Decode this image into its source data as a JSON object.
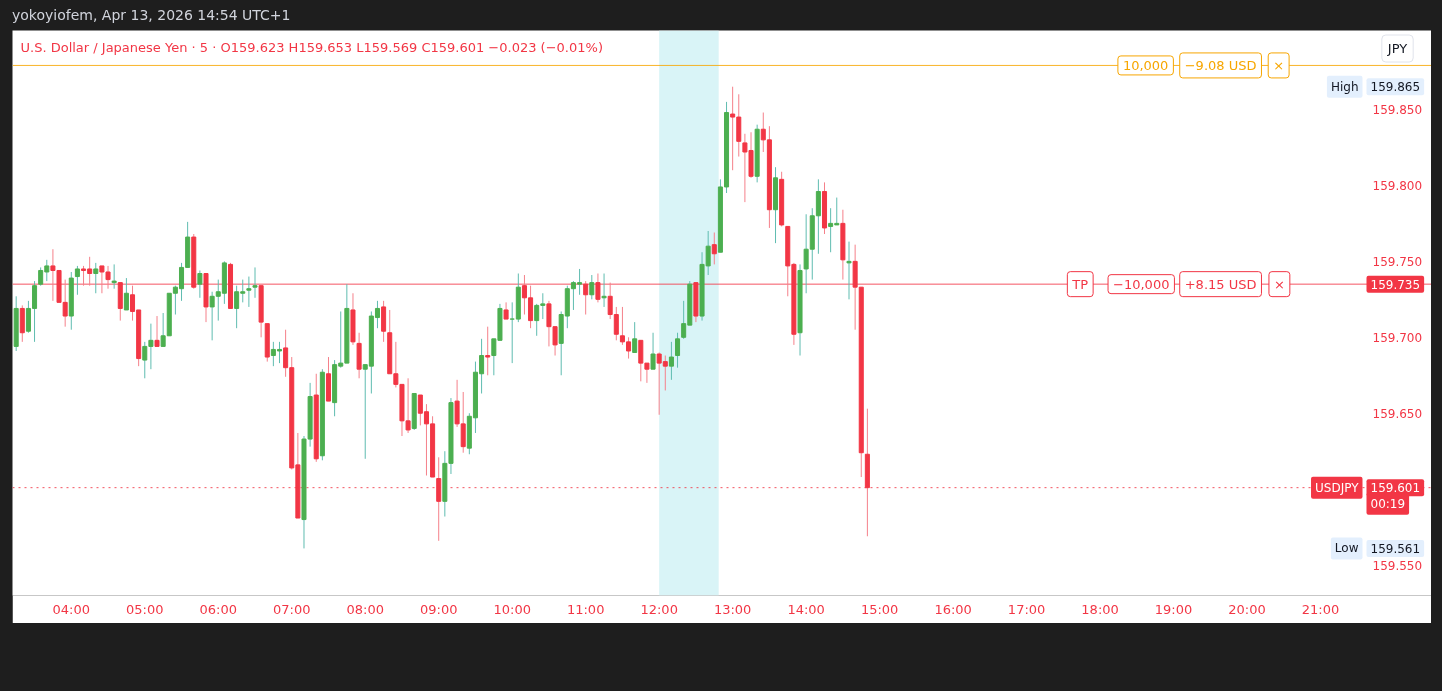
{
  "chart_data": {
    "type": "candlestick",
    "title": "U.S. Dollar / Japanese Yen · 5 · O159.623 H159.653 L159.569 C159.601 −0.023 (−0.01%)",
    "x": [
      3.25,
      3.3333,
      3.4167,
      3.5,
      3.5833,
      3.6667,
      3.75,
      3.8333,
      3.9167,
      4,
      4.0833,
      4.1667,
      4.25,
      4.3333,
      4.4167,
      4.5,
      4.5833,
      4.6667,
      4.75,
      4.8333,
      4.9167,
      5,
      5.0833,
      5.1667,
      5.25,
      5.3333,
      5.4167,
      5.5,
      5.5833,
      5.6667,
      5.75,
      5.8333,
      5.9167,
      6,
      6.0833,
      6.1667,
      6.25,
      6.3333,
      6.4167,
      6.5,
      6.5833,
      6.6667,
      6.75,
      6.8333,
      6.9167,
      7,
      7.0833,
      7.1667,
      7.25,
      7.3333,
      7.4167,
      7.5,
      7.5833,
      7.6667,
      7.75,
      7.8333,
      7.9167,
      8,
      8.0833,
      8.1667,
      8.25,
      8.3333,
      8.4167,
      8.5,
      8.5833,
      8.6667,
      8.75,
      8.8333,
      8.9167,
      9,
      9.0833,
      9.1667,
      9.25,
      9.3333,
      9.4167,
      9.5,
      9.5833,
      9.6667,
      9.75,
      9.8333,
      9.9167,
      10,
      10.0833,
      10.1667,
      10.25,
      10.3333,
      10.4167,
      10.5,
      10.5833,
      10.6667,
      10.75,
      10.8333,
      10.9167,
      11,
      11.0833,
      11.1667,
      11.25,
      11.3333,
      11.4167,
      11.5,
      11.5833,
      11.6667,
      11.75,
      11.8333,
      11.9167,
      12,
      12.0833,
      12.1667,
      12.25,
      12.3333,
      12.4167,
      12.5,
      12.5833,
      12.6667,
      12.75,
      12.8333,
      12.9167,
      13,
      13.0833,
      13.1667,
      13.25,
      13.3333,
      13.4167,
      13.5,
      13.5833,
      13.6667,
      13.75,
      13.8333,
      13.9167,
      14,
      14.0833,
      14.1667,
      14.25,
      14.3333,
      14.4167,
      14.5,
      14.5833,
      14.6667,
      14.75,
      14.8333
    ],
    "ohlc": [
      [
        159.694,
        159.727,
        159.691,
        159.719
      ],
      [
        159.719,
        159.721,
        159.697,
        159.703
      ],
      [
        159.704,
        159.724,
        159.703,
        159.719
      ],
      [
        159.719,
        159.737,
        159.697,
        159.734
      ],
      [
        159.735,
        159.746,
        159.734,
        159.744
      ],
      [
        159.743,
        159.751,
        159.737,
        159.747
      ],
      [
        159.747,
        159.758,
        159.724,
        159.744
      ],
      [
        159.744,
        159.744,
        159.723,
        159.723
      ],
      [
        159.723,
        159.738,
        159.707,
        159.714
      ],
      [
        159.714,
        159.743,
        159.705,
        159.739
      ],
      [
        159.74,
        159.747,
        159.728,
        159.745
      ],
      [
        159.745,
        159.747,
        159.734,
        159.744
      ],
      [
        159.745,
        159.753,
        159.734,
        159.742
      ],
      [
        159.742,
        159.749,
        159.729,
        159.745
      ],
      [
        159.747,
        159.747,
        159.729,
        159.743
      ],
      [
        159.743,
        159.747,
        159.732,
        159.738
      ],
      [
        159.736,
        159.748,
        159.732,
        159.737
      ],
      [
        159.736,
        159.736,
        159.711,
        159.719
      ],
      [
        159.718,
        159.739,
        159.718,
        159.729
      ],
      [
        159.728,
        159.734,
        159.711,
        159.717
      ],
      [
        159.718,
        159.718,
        159.681,
        159.686
      ],
      [
        159.685,
        159.697,
        159.673,
        159.694
      ],
      [
        159.694,
        159.709,
        159.679,
        159.698
      ],
      [
        159.698,
        159.714,
        159.694,
        159.694
      ],
      [
        159.694,
        159.716,
        159.694,
        159.701
      ],
      [
        159.701,
        159.729,
        159.701,
        159.729
      ],
      [
        159.729,
        159.734,
        159.715,
        159.733
      ],
      [
        159.732,
        159.749,
        159.724,
        159.746
      ],
      [
        159.746,
        159.776,
        159.746,
        159.766
      ],
      [
        159.766,
        159.768,
        159.732,
        159.733
      ],
      [
        159.735,
        159.744,
        159.726,
        159.742
      ],
      [
        159.742,
        159.742,
        159.71,
        159.72
      ],
      [
        159.72,
        159.73,
        159.698,
        159.727
      ],
      [
        159.727,
        159.738,
        159.711,
        159.73
      ],
      [
        159.729,
        159.75,
        159.722,
        159.749
      ],
      [
        159.748,
        159.749,
        159.719,
        159.719
      ],
      [
        159.719,
        159.734,
        159.706,
        159.73
      ],
      [
        159.729,
        159.738,
        159.723,
        159.73
      ],
      [
        159.731,
        159.74,
        159.72,
        159.732
      ],
      [
        159.733,
        159.746,
        159.726,
        159.734
      ],
      [
        159.734,
        159.734,
        159.7,
        159.71
      ],
      [
        159.709,
        159.709,
        159.684,
        159.687
      ],
      [
        159.688,
        159.697,
        159.681,
        159.692
      ],
      [
        159.691,
        159.697,
        159.683,
        159.692
      ],
      [
        159.693,
        159.705,
        159.674,
        159.68
      ],
      [
        159.68,
        159.687,
        159.613,
        159.614
      ],
      [
        159.616,
        159.637,
        159.581,
        159.581
      ],
      [
        159.58,
        159.635,
        159.561,
        159.633
      ],
      [
        159.633,
        159.67,
        159.628,
        159.661
      ],
      [
        159.662,
        159.676,
        159.618,
        159.62
      ],
      [
        159.622,
        159.679,
        159.619,
        159.677
      ],
      [
        159.676,
        159.687,
        159.658,
        159.658
      ],
      [
        159.657,
        159.685,
        159.648,
        159.682
      ],
      [
        159.681,
        159.717,
        159.68,
        159.683
      ],
      [
        159.683,
        159.735,
        159.683,
        159.719
      ],
      [
        159.718,
        159.729,
        159.695,
        159.697
      ],
      [
        159.696,
        159.703,
        159.673,
        159.679
      ],
      [
        159.679,
        159.682,
        159.62,
        159.682
      ],
      [
        159.681,
        159.717,
        159.663,
        159.714
      ],
      [
        159.713,
        159.724,
        159.706,
        159.719
      ],
      [
        159.72,
        159.724,
        159.697,
        159.704
      ],
      [
        159.703,
        159.718,
        159.676,
        159.676
      ],
      [
        159.676,
        159.697,
        159.667,
        159.669
      ],
      [
        159.669,
        159.669,
        159.635,
        159.645
      ],
      [
        159.645,
        159.673,
        159.637,
        159.639
      ],
      [
        159.64,
        159.663,
        159.639,
        159.663
      ],
      [
        159.662,
        159.662,
        159.642,
        159.65
      ],
      [
        159.651,
        159.656,
        159.609,
        159.643
      ],
      [
        159.643,
        159.648,
        159.608,
        159.608
      ],
      [
        159.607,
        159.621,
        159.566,
        159.592
      ],
      [
        159.592,
        159.625,
        159.582,
        159.617
      ],
      [
        159.617,
        159.66,
        159.61,
        159.657
      ],
      [
        159.658,
        159.672,
        159.641,
        159.643
      ],
      [
        159.643,
        159.664,
        159.624,
        159.628
      ],
      [
        159.627,
        159.65,
        159.623,
        159.648
      ],
      [
        159.647,
        159.684,
        159.637,
        159.677
      ],
      [
        159.676,
        159.699,
        159.663,
        159.688
      ],
      [
        159.688,
        159.707,
        159.675,
        159.687
      ],
      [
        159.688,
        159.699,
        159.675,
        159.699
      ],
      [
        159.698,
        159.722,
        159.698,
        159.719
      ],
      [
        159.718,
        159.723,
        159.712,
        159.712
      ],
      [
        159.712,
        159.723,
        159.683,
        159.712
      ],
      [
        159.712,
        159.742,
        159.71,
        159.733
      ],
      [
        159.734,
        159.741,
        159.715,
        159.726
      ],
      [
        159.726,
        159.734,
        159.706,
        159.711
      ],
      [
        159.711,
        159.722,
        159.701,
        159.721
      ],
      [
        159.721,
        159.729,
        159.712,
        159.722
      ],
      [
        159.722,
        159.724,
        159.694,
        159.707
      ],
      [
        159.707,
        159.707,
        159.688,
        159.695
      ],
      [
        159.696,
        159.717,
        159.675,
        159.715
      ],
      [
        159.714,
        159.734,
        159.706,
        159.732
      ],
      [
        159.732,
        159.737,
        159.718,
        159.736
      ],
      [
        159.735,
        159.745,
        159.728,
        159.736
      ],
      [
        159.735,
        159.737,
        159.715,
        159.728
      ],
      [
        159.728,
        159.741,
        159.725,
        159.736
      ],
      [
        159.736,
        159.742,
        159.723,
        159.725
      ],
      [
        159.726,
        159.742,
        159.72,
        159.727
      ],
      [
        159.727,
        159.736,
        159.712,
        159.715
      ],
      [
        159.715,
        159.72,
        159.698,
        159.702
      ],
      [
        159.701,
        159.72,
        159.695,
        159.697
      ],
      [
        159.697,
        159.7,
        159.686,
        159.691
      ],
      [
        159.69,
        159.71,
        159.69,
        159.699
      ],
      [
        159.698,
        159.698,
        159.671,
        159.683
      ],
      [
        159.683,
        159.683,
        159.67,
        159.679
      ],
      [
        159.679,
        159.703,
        159.679,
        159.689
      ],
      [
        159.689,
        159.69,
        159.649,
        159.683
      ],
      [
        159.684,
        159.688,
        159.665,
        159.681
      ],
      [
        159.681,
        159.697,
        159.672,
        159.687
      ],
      [
        159.688,
        159.703,
        159.68,
        159.699
      ],
      [
        159.7,
        159.724,
        159.699,
        159.709
      ],
      [
        159.708,
        159.737,
        159.708,
        159.735
      ],
      [
        159.736,
        159.736,
        159.71,
        159.714
      ],
      [
        159.714,
        159.756,
        159.711,
        159.748
      ],
      [
        159.747,
        159.77,
        159.741,
        159.76
      ],
      [
        159.761,
        159.769,
        159.748,
        159.755
      ],
      [
        159.756,
        159.804,
        159.756,
        159.799
      ],
      [
        159.799,
        159.855,
        159.795,
        159.848
      ],
      [
        159.847,
        159.865,
        159.81,
        159.845
      ],
      [
        159.845,
        159.86,
        159.819,
        159.829
      ],
      [
        159.828,
        159.834,
        159.789,
        159.822
      ],
      [
        159.823,
        159.835,
        159.805,
        159.806
      ],
      [
        159.806,
        159.84,
        159.802,
        159.837
      ],
      [
        159.837,
        159.848,
        159.822,
        159.83
      ],
      [
        159.83,
        159.839,
        159.772,
        159.784
      ],
      [
        159.784,
        159.812,
        159.762,
        159.805
      ],
      [
        159.804,
        159.809,
        159.773,
        159.774
      ],
      [
        159.773,
        159.773,
        159.727,
        159.747
      ],
      [
        159.748,
        159.749,
        159.695,
        159.702
      ],
      [
        159.703,
        159.748,
        159.688,
        159.744
      ],
      [
        159.745,
        159.781,
        159.729,
        159.758
      ],
      [
        159.758,
        159.785,
        159.738,
        159.78
      ],
      [
        159.78,
        159.804,
        159.755,
        159.796
      ],
      [
        159.796,
        159.802,
        159.768,
        159.772
      ],
      [
        159.773,
        159.785,
        159.756,
        159.775
      ],
      [
        159.774,
        159.792,
        159.774,
        159.775
      ],
      [
        159.775,
        159.784,
        159.738,
        159.751
      ],
      [
        159.749,
        159.763,
        159.725,
        159.75
      ],
      [
        159.75,
        159.761,
        159.705,
        159.733
      ],
      [
        159.733,
        159.733,
        159.608,
        159.624
      ],
      [
        159.623,
        159.653,
        159.569,
        159.601
      ]
    ],
    "colors": [
      "#4caf50",
      "#f23645",
      "#4caf50",
      "#4caf50",
      "#4caf50",
      "#4caf50",
      "#f23645",
      "#f23645",
      "#f23645",
      "#4caf50",
      "#4caf50",
      "#f23645",
      "#f23645",
      "#4caf50",
      "#f23645",
      "#f23645",
      "#4caf50",
      "#f23645",
      "#4caf50",
      "#f23645",
      "#f23645",
      "#4caf50",
      "#4caf50",
      "#f23645",
      "#4caf50",
      "#4caf50",
      "#4caf50",
      "#4caf50",
      "#4caf50",
      "#f23645",
      "#4caf50",
      "#f23645",
      "#4caf50",
      "#4caf50",
      "#4caf50",
      "#f23645",
      "#4caf50",
      "#4caf50",
      "#4caf50",
      "#4caf50",
      "#f23645",
      "#f23645",
      "#4caf50",
      "#4caf50",
      "#f23645",
      "#f23645",
      "#f23645",
      "#4caf50",
      "#4caf50",
      "#f23645",
      "#4caf50",
      "#f23645",
      "#4caf50",
      "#4caf50",
      "#4caf50",
      "#f23645",
      "#f23645",
      "#4caf50",
      "#4caf50",
      "#4caf50",
      "#f23645",
      "#f23645",
      "#f23645",
      "#f23645",
      "#f23645",
      "#4caf50",
      "#f23645",
      "#f23645",
      "#f23645",
      "#f23645",
      "#4caf50",
      "#4caf50",
      "#f23645",
      "#f23645",
      "#4caf50",
      "#4caf50",
      "#4caf50",
      "#f23645",
      "#4caf50",
      "#4caf50",
      "#f23645",
      "#4caf50",
      "#4caf50",
      "#f23645",
      "#f23645",
      "#4caf50",
      "#4caf50",
      "#f23645",
      "#f23645",
      "#4caf50",
      "#4caf50",
      "#4caf50",
      "#4caf50",
      "#f23645",
      "#4caf50",
      "#f23645",
      "#4caf50",
      "#f23645",
      "#f23645",
      "#f23645",
      "#f23645",
      "#4caf50",
      "#f23645",
      "#f23645",
      "#4caf50",
      "#f23645",
      "#f23645",
      "#4caf50",
      "#4caf50",
      "#4caf50",
      "#4caf50",
      "#f23645",
      "#4caf50",
      "#4caf50",
      "#f23645",
      "#4caf50",
      "#4caf50",
      "#f23645",
      "#f23645",
      "#f23645",
      "#f23645",
      "#4caf50",
      "#f23645",
      "#f23645",
      "#4caf50",
      "#f23645",
      "#f23645",
      "#f23645",
      "#4caf50",
      "#4caf50",
      "#4caf50",
      "#4caf50",
      "#f23645",
      "#4caf50",
      "#4caf50",
      "#f23645",
      "#4caf50",
      "#f23645",
      "#f23645",
      "#f23645"
    ],
    "xlim": [
      3.2,
      22.51
    ],
    "ylim": [
      159.53,
      159.902
    ],
    "xticks": [
      {
        "value": 4,
        "label": "04:00"
      },
      {
        "value": 5,
        "label": "05:00"
      },
      {
        "value": 6,
        "label": "06:00"
      },
      {
        "value": 7,
        "label": "07:00"
      },
      {
        "value": 8,
        "label": "08:00"
      },
      {
        "value": 9,
        "label": "09:00"
      },
      {
        "value": 10,
        "label": "10:00"
      },
      {
        "value": 11,
        "label": "11:00"
      },
      {
        "value": 12,
        "label": "12:00"
      },
      {
        "value": 13,
        "label": "13:00"
      },
      {
        "value": 14,
        "label": "14:00"
      },
      {
        "value": 15,
        "label": "15:00"
      },
      {
        "value": 16,
        "label": "16:00"
      },
      {
        "value": 17,
        "label": "17:00"
      },
      {
        "value": 18,
        "label": "18:00"
      },
      {
        "value": 19,
        "label": "19:00"
      },
      {
        "value": 20,
        "label": "20:00"
      },
      {
        "value": 21,
        "label": "21:00"
      }
    ],
    "yticks": [
      {
        "value": 159.55,
        "label": "159.550"
      },
      {
        "value": 159.65,
        "label": "159.650"
      },
      {
        "value": 159.7,
        "label": "159.700"
      },
      {
        "value": 159.75,
        "label": "159.750"
      },
      {
        "value": 159.8,
        "label": "159.800"
      },
      {
        "value": 159.85,
        "label": "159.850"
      }
    ],
    "ref_lines": [
      {
        "axis": "y",
        "value": 159.879,
        "color": "#f7a600"
      },
      {
        "axis": "y",
        "value": 159.735,
        "label": "159.735",
        "color": "#f23645"
      },
      {
        "axis": "y",
        "value": 159.601,
        "label": "159.601",
        "color": "#f23645",
        "line_style": "dotted"
      }
    ],
    "bands": [
      {
        "axis": "x",
        "from": 12,
        "to": 12.81,
        "color": "#d9f4f7"
      }
    ],
    "annotations": [
      "yokoyiofem, Apr 13, 2026 14:54 UTC+1",
      "JPY",
      {
        "text": "10,000",
        "x": 18.62,
        "y": 159.879
      },
      {
        "text": "−9.08 USD",
        "x": 19.64,
        "y": 159.879
      },
      {
        "text": "×",
        "x": 20.43,
        "y": 159.879
      },
      {
        "text": "TP",
        "x": 17.73,
        "y": 159.735
      },
      {
        "text": "−10,000",
        "x": 18.56,
        "y": 159.735
      },
      {
        "text": "+8.15 USD",
        "x": 19.64,
        "y": 159.735
      },
      {
        "text": "×",
        "x": 20.44,
        "y": 159.735
      },
      {
        "text": "High",
        "y": 159.865
      },
      "159.865",
      {
        "text": "Low",
        "y": 159.561
      },
      "159.561",
      {
        "text": "USDJPY",
        "y": 159.601
      },
      {
        "text": "00:19",
        "y": 159.601
      }
    ]
  }
}
